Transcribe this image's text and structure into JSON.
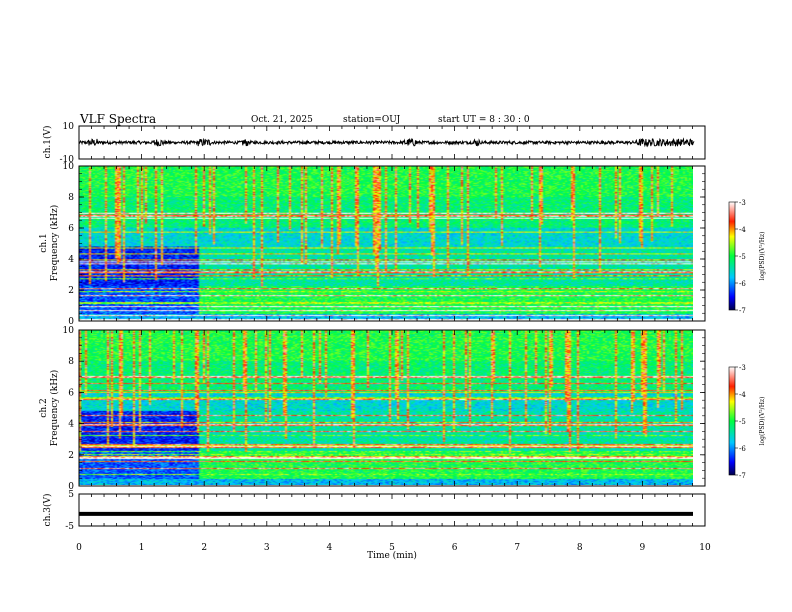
{
  "header": {
    "title": "VLF Spectra",
    "date": "Oct. 21, 2025",
    "station": "station=OUJ",
    "start_ut": "start  UT =  8 : 30 : 0"
  },
  "chart_data": [
    {
      "type": "line",
      "panel": "waveform-ch1",
      "ylabel": "ch.1(V)",
      "ylim": [
        -10,
        10
      ],
      "yticks": [
        "10",
        "-10"
      ],
      "xlim": [
        0,
        10
      ],
      "description_values": "noisy waveform, amplitude ~ +/-2 V, bursts near 0.2, 1.3, 2.0, 5.3, 9.0-9.8 min"
    },
    {
      "type": "heatmap",
      "panel": "spectrogram-ch1",
      "ylabel_channel": "ch.1",
      "ylabel": "Frequency  (kHz)",
      "ylim": [
        0,
        10
      ],
      "yticks": [
        "0",
        "2",
        "4",
        "6",
        "8",
        "10"
      ],
      "xlim": [
        0,
        10
      ],
      "colorbar": {
        "label": "log(PSD)(V²/Hz)",
        "range": [
          -7,
          -3
        ],
        "ticks": [
          "-3",
          "-4",
          "-5",
          "-6",
          "-7"
        ]
      }
    },
    {
      "type": "heatmap",
      "panel": "spectrogram-ch2",
      "ylabel_channel": "ch.2",
      "ylabel": "Frequency  (kHz)",
      "ylim": [
        0,
        10
      ],
      "yticks": [
        "0",
        "2",
        "4",
        "6",
        "8",
        "10"
      ],
      "xlim": [
        0,
        10
      ],
      "colorbar": {
        "label": "log(PSD)(V²/Hz)",
        "range": [
          -7,
          -3
        ],
        "ticks": [
          "-3",
          "-4",
          "-5",
          "-6",
          "-7"
        ]
      }
    },
    {
      "type": "line",
      "panel": "waveform-ch3",
      "ylabel": "ch.3(V)",
      "ylim": [
        -5,
        5
      ],
      "yticks": [
        "5",
        "-5"
      ],
      "constant_value": -1.2,
      "xlim": [
        0,
        10
      ],
      "xlabel": "Time  (min)",
      "xticks": [
        "0",
        "1",
        "2",
        "3",
        "4",
        "5",
        "6",
        "7",
        "8",
        "9",
        "10"
      ]
    }
  ],
  "colors": {
    "background": "#ffffff",
    "axis": "#000000"
  }
}
